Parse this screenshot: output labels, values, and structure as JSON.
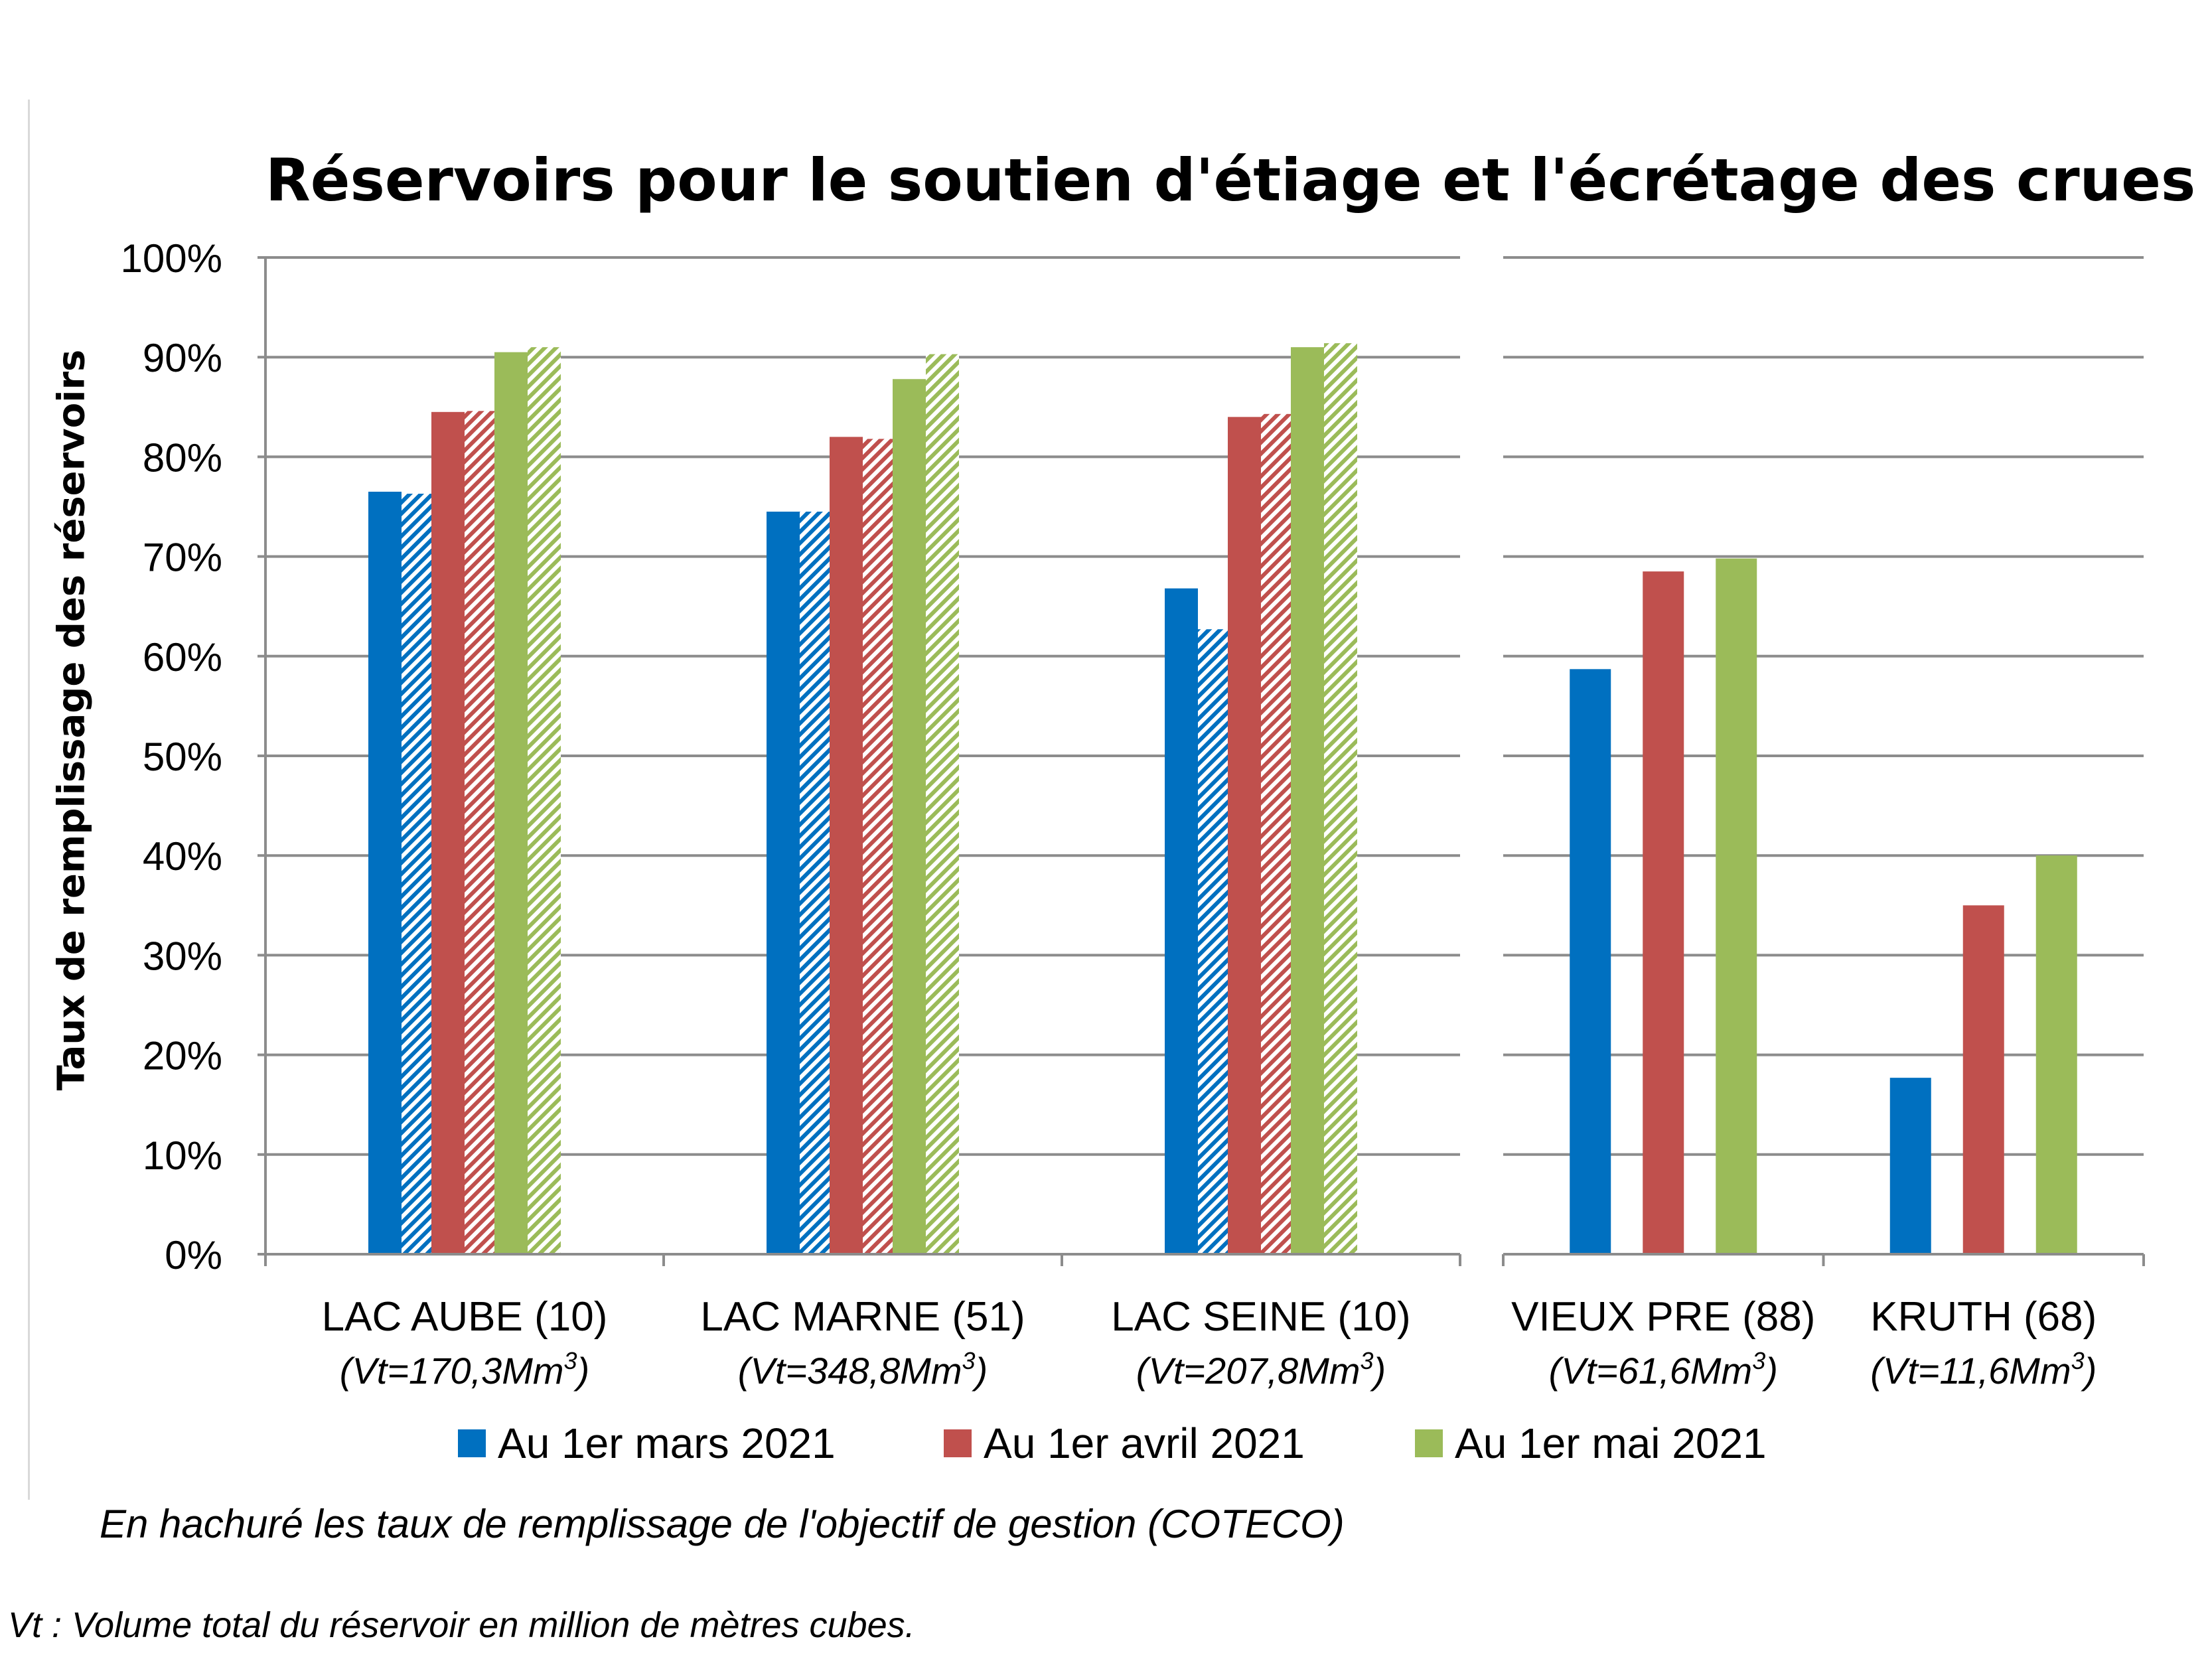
{
  "chart_data": {
    "type": "bar",
    "title": "Réservoirs pour le soutien d'étiage et l'écrétage des crues",
    "ylabel": "Taux de remplissage des réservoirs",
    "xlabel": "",
    "ylim": [
      0,
      100
    ],
    "ytick_labels": [
      "0%",
      "10%",
      "20%",
      "30%",
      "40%",
      "50%",
      "60%",
      "70%",
      "80%",
      "90%",
      "100%"
    ],
    "grid": true,
    "legend_position": "bottom",
    "categories": [
      {
        "name": "LAC AUBE (10)",
        "volume_prefix": "(Vt=170,3Mm",
        "volume_sup": "3",
        "volume_suffix": ")",
        "panel": "left"
      },
      {
        "name": "LAC MARNE (51)",
        "volume_prefix": "(Vt=348,8Mm",
        "volume_sup": "3",
        "volume_suffix": ")",
        "panel": "left"
      },
      {
        "name": "LAC SEINE (10)",
        "volume_prefix": "(Vt=207,8Mm",
        "volume_sup": "3",
        "volume_suffix": ")",
        "panel": "left"
      },
      {
        "name": "VIEUX PRE (88)",
        "volume_prefix": "(Vt=61,6Mm",
        "volume_sup": "3",
        "volume_suffix": ")",
        "panel": "right"
      },
      {
        "name": "KRUTH (68)",
        "volume_prefix": "(Vt=11,6Mm",
        "volume_sup": "3",
        "volume_suffix": ")",
        "panel": "right"
      }
    ],
    "series": [
      {
        "name": "Au 1er mars 2021",
        "color": "#0070c0",
        "values": [
          76.5,
          74.5,
          66.8,
          58.7,
          17.7
        ],
        "objective": [
          76.3,
          74.5,
          62.7,
          null,
          null
        ]
      },
      {
        "name": "Au 1er avril 2021",
        "color": "#c0504d",
        "values": [
          84.5,
          82.0,
          84.0,
          68.5,
          35.0
        ],
        "objective": [
          84.6,
          81.8,
          84.3,
          null,
          null
        ]
      },
      {
        "name": "Au 1er mai 2021",
        "color": "#9bbb59",
        "values": [
          90.5,
          87.8,
          91.0,
          69.8,
          40.0
        ],
        "objective": [
          91.0,
          90.3,
          91.4,
          null,
          null
        ]
      }
    ],
    "note": "En hachuré les taux de remplissage de l'objectif de gestion (COTECO)",
    "footnote": "Vt : Volume total du réservoir en million de mètres cubes."
  }
}
